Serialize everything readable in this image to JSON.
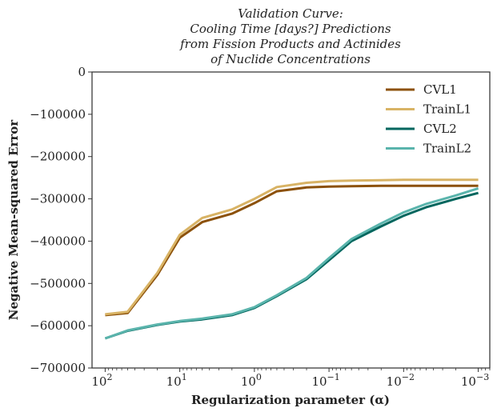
{
  "chart_data": {
    "type": "line",
    "title": [
      "Validation Curve:",
      "Cooling Time [days?] Predictions",
      "from Fission Products and Actinides",
      "of Nuclide Concentrations"
    ],
    "xlabel": "Regularization parameter (α)",
    "ylabel": "Negative Mean-squared Error",
    "x_scale": "log",
    "x_reversed": true,
    "xlim": [
      150,
      0.0007
    ],
    "ylim": [
      -700000,
      0
    ],
    "x_ticks": [
      {
        "value": 100,
        "label": "10",
        "exp": "2"
      },
      {
        "value": 10,
        "label": "10",
        "exp": "1"
      },
      {
        "value": 1,
        "label": "10",
        "exp": "0"
      },
      {
        "value": 0.1,
        "label": "10",
        "exp": "−1"
      },
      {
        "value": 0.01,
        "label": "10",
        "exp": "−2"
      },
      {
        "value": 0.001,
        "label": "10",
        "exp": "−3"
      }
    ],
    "y_ticks": [
      {
        "value": 0,
        "label": "0"
      },
      {
        "value": -100000,
        "label": "−100000"
      },
      {
        "value": -200000,
        "label": "−200000"
      },
      {
        "value": -300000,
        "label": "−300000"
      },
      {
        "value": -400000,
        "label": "−400000"
      },
      {
        "value": -500000,
        "label": "−500000"
      },
      {
        "value": -600000,
        "label": "−600000"
      },
      {
        "value": -700000,
        "label": "−700000"
      }
    ],
    "grid": false,
    "legend_position": "top-right",
    "x": [
      100,
      50,
      20,
      10,
      5,
      2,
      1,
      0.5,
      0.2,
      0.1,
      0.05,
      0.02,
      0.01,
      0.005,
      0.002,
      0.001
    ],
    "series": [
      {
        "name": "CVL1",
        "color": "#8c510a",
        "values": [
          -575000,
          -570000,
          -480000,
          -392000,
          -355000,
          -335000,
          -310000,
          -282000,
          -273000,
          -271000,
          -270000,
          -269000,
          -269000,
          -269000,
          -269000,
          -269000
        ]
      },
      {
        "name": "TrainL1",
        "color": "#d8b365",
        "values": [
          -573000,
          -567000,
          -475000,
          -385000,
          -345000,
          -325000,
          -300000,
          -272000,
          -262000,
          -258000,
          -257000,
          -256000,
          -255000,
          -255000,
          -255000,
          -255000
        ]
      },
      {
        "name": "CVL2",
        "color": "#01665e",
        "values": [
          -630000,
          -612000,
          -598000,
          -590000,
          -585000,
          -575000,
          -558000,
          -530000,
          -490000,
          -445000,
          -400000,
          -365000,
          -340000,
          -320000,
          -300000,
          -286000
        ]
      },
      {
        "name": "TrainL2",
        "color": "#5ab4ac",
        "values": [
          -630000,
          -611000,
          -597000,
          -589000,
          -583000,
          -573000,
          -556000,
          -528000,
          -487000,
          -440000,
          -395000,
          -358000,
          -332000,
          -312000,
          -292000,
          -275000
        ]
      }
    ]
  }
}
